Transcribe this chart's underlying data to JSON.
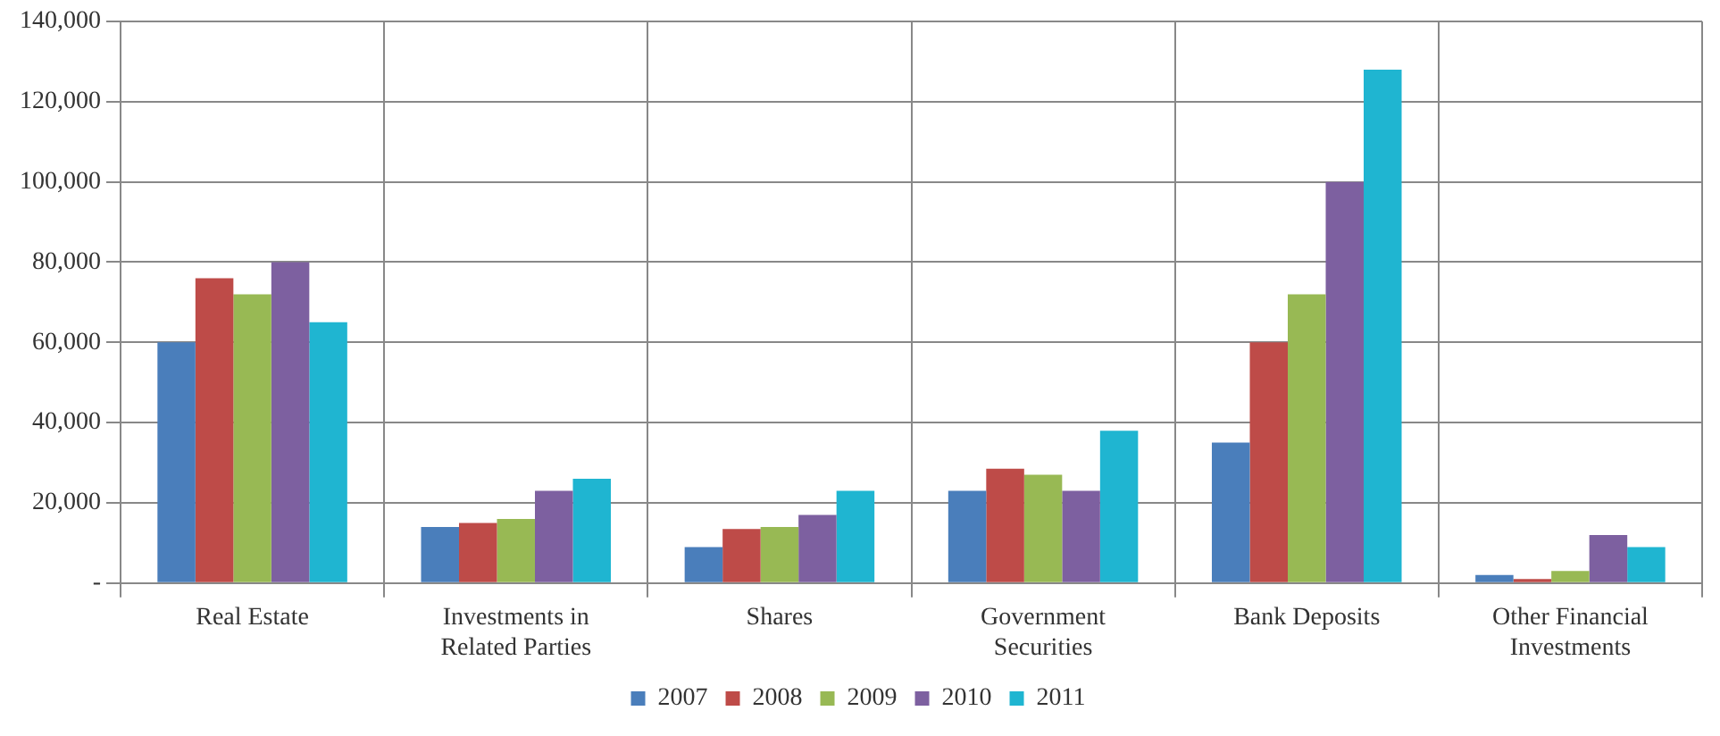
{
  "chart_data": {
    "type": "bar",
    "categories": [
      "Real Estate",
      "Investments in Related Parties",
      "Shares",
      "Government Securities",
      "Bank Deposits",
      "Other Financial Investments"
    ],
    "series": [
      {
        "name": "2007",
        "color": "#4a7ebb",
        "values": [
          60000,
          14000,
          9000,
          23000,
          35000,
          2000
        ]
      },
      {
        "name": "2008",
        "color": "#be4b48",
        "values": [
          76000,
          15000,
          13500,
          28500,
          60000,
          1000
        ]
      },
      {
        "name": "2009",
        "color": "#98b954",
        "values": [
          72000,
          16000,
          14000,
          27000,
          72000,
          3000
        ]
      },
      {
        "name": "2010",
        "color": "#7d60a0",
        "values": [
          80000,
          23000,
          17000,
          23000,
          100000,
          12000
        ]
      },
      {
        "name": "2011",
        "color": "#1fb5d1",
        "values": [
          65000,
          26000,
          23000,
          38000,
          128000,
          9000
        ]
      }
    ],
    "ylim": [
      0,
      140000
    ],
    "yticks": [
      {
        "value": 0,
        "label": "-"
      },
      {
        "value": 20000,
        "label": "20,000"
      },
      {
        "value": 40000,
        "label": "40,000"
      },
      {
        "value": 60000,
        "label": "60,000"
      },
      {
        "value": 80000,
        "label": "80,000"
      },
      {
        "value": 100000,
        "label": "100,000"
      },
      {
        "value": 120000,
        "label": "120,000"
      },
      {
        "value": 140000,
        "label": "140,000"
      }
    ],
    "grid": true,
    "legend": "bottom"
  }
}
